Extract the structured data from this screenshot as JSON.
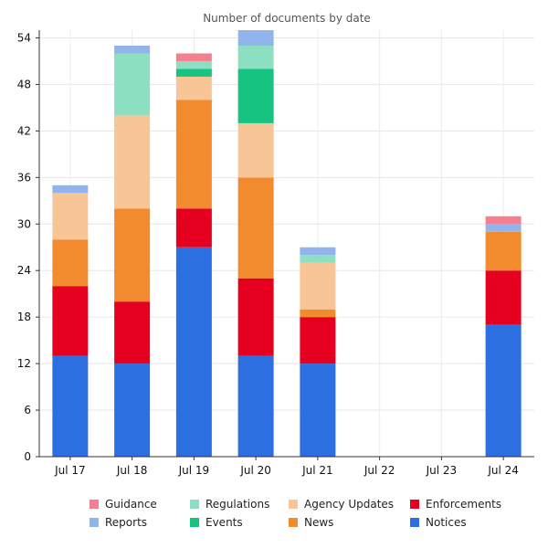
{
  "chart_data": {
    "type": "bar",
    "stacked": true,
    "title": "Number of documents by date",
    "xlabel": "",
    "ylabel": "",
    "ylim": [
      0,
      55
    ],
    "yticks": [
      0,
      6,
      12,
      18,
      24,
      30,
      36,
      42,
      48,
      54
    ],
    "grid": true,
    "legend_position": "bottom",
    "categories": [
      "Jul 17",
      "Jul 18",
      "Jul 19",
      "Jul 20",
      "Jul 21",
      "Jul 22",
      "Jul 23",
      "Jul 24"
    ],
    "series": [
      {
        "name": "Notices",
        "color": "#2b6fe0",
        "values": [
          13,
          12,
          27,
          13,
          12,
          0,
          0,
          17
        ]
      },
      {
        "name": "Enforcements",
        "color": "#e60020",
        "values": [
          9,
          8,
          5,
          10,
          6,
          0,
          0,
          7
        ]
      },
      {
        "name": "News",
        "color": "#f28a2e",
        "values": [
          6,
          12,
          14,
          13,
          1,
          0,
          0,
          5
        ]
      },
      {
        "name": "Agency Updates",
        "color": "#f8c596",
        "values": [
          6,
          12,
          3,
          7,
          6,
          0,
          0,
          0
        ]
      },
      {
        "name": "Events",
        "color": "#16c380",
        "values": [
          0,
          0,
          1,
          7,
          0,
          0,
          0,
          0
        ]
      },
      {
        "name": "Regulations",
        "color": "#8ddfc2",
        "values": [
          0,
          8,
          1,
          3,
          1,
          0,
          0,
          0
        ]
      },
      {
        "name": "Reports",
        "color": "#92b4ec",
        "values": [
          1,
          1,
          0,
          2,
          1,
          0,
          0,
          1
        ]
      },
      {
        "name": "Guidance",
        "color": "#f4808f",
        "values": [
          0,
          0,
          1,
          0,
          0,
          0,
          0,
          1
        ]
      }
    ],
    "legend_order": [
      "Guidance",
      "Regulations",
      "Agency Updates",
      "Enforcements",
      "Reports",
      "Events",
      "News",
      "Notices"
    ]
  }
}
